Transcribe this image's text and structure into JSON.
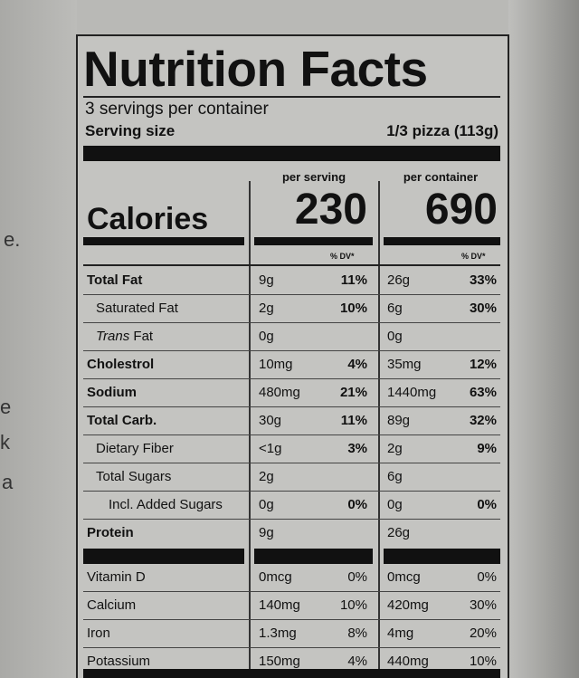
{
  "background_fragments": [
    "e.",
    "e",
    "k",
    "a"
  ],
  "label": {
    "title": "Nutrition Facts",
    "servings_per_container": "3 servings per container",
    "serving_size_label": "Serving size",
    "serving_size_value": "1/3 pizza (113g)",
    "per_serving_header": "per serving",
    "per_container_header": "per container",
    "calories_label": "Calories",
    "calories_per_serving": "230",
    "calories_per_container": "690",
    "dv_header": "% DV*",
    "nutrients": [
      {
        "name": "Total Fat",
        "style": "bold",
        "indent": 0,
        "serving_amount": "9g",
        "serving_dv": "11%",
        "container_amount": "26g",
        "container_dv": "33%"
      },
      {
        "name": "Saturated Fat",
        "style": "normal",
        "indent": 1,
        "serving_amount": "2g",
        "serving_dv": "10%",
        "container_amount": "6g",
        "container_dv": "30%"
      },
      {
        "name": "Trans",
        "name_suffix": " Fat",
        "style": "italic",
        "indent": 1,
        "serving_amount": "0g",
        "serving_dv": "",
        "container_amount": "0g",
        "container_dv": ""
      },
      {
        "name": "Cholestrol",
        "style": "bold",
        "indent": 0,
        "serving_amount": "10mg",
        "serving_dv": "4%",
        "container_amount": "35mg",
        "container_dv": "12%"
      },
      {
        "name": "Sodium",
        "style": "bold",
        "indent": 0,
        "serving_amount": "480mg",
        "serving_dv": "21%",
        "container_amount": "1440mg",
        "container_dv": "63%"
      },
      {
        "name": "Total Carb.",
        "style": "bold",
        "indent": 0,
        "serving_amount": "30g",
        "serving_dv": "11%",
        "container_amount": "89g",
        "container_dv": "32%"
      },
      {
        "name": "Dietary Fiber",
        "style": "normal",
        "indent": 1,
        "serving_amount": "<1g",
        "serving_dv": "3%",
        "container_amount": "2g",
        "container_dv": "9%"
      },
      {
        "name": "Total Sugars",
        "style": "normal",
        "indent": 1,
        "serving_amount": "2g",
        "serving_dv": "",
        "container_amount": "6g",
        "container_dv": ""
      },
      {
        "name": "Incl. Added Sugars",
        "style": "normal",
        "indent": 2,
        "serving_amount": "0g",
        "serving_dv": "0%",
        "container_amount": "0g",
        "container_dv": "0%"
      },
      {
        "name": "Protein",
        "style": "bold",
        "indent": 0,
        "serving_amount": "9g",
        "serving_dv": "",
        "container_amount": "26g",
        "container_dv": ""
      }
    ],
    "vitamins": [
      {
        "name": "Vitamin D",
        "serving_amount": "0mcg",
        "serving_dv": "0%",
        "container_amount": "0mcg",
        "container_dv": "0%"
      },
      {
        "name": "Calcium",
        "serving_amount": "140mg",
        "serving_dv": "10%",
        "container_amount": "420mg",
        "container_dv": "30%"
      },
      {
        "name": "Iron",
        "serving_amount": "1.3mg",
        "serving_dv": "8%",
        "container_amount": "4mg",
        "container_dv": "20%"
      },
      {
        "name": "Potassium",
        "serving_amount": "150mg",
        "serving_dv": "4%",
        "container_amount": "440mg",
        "container_dv": "10%"
      }
    ]
  }
}
